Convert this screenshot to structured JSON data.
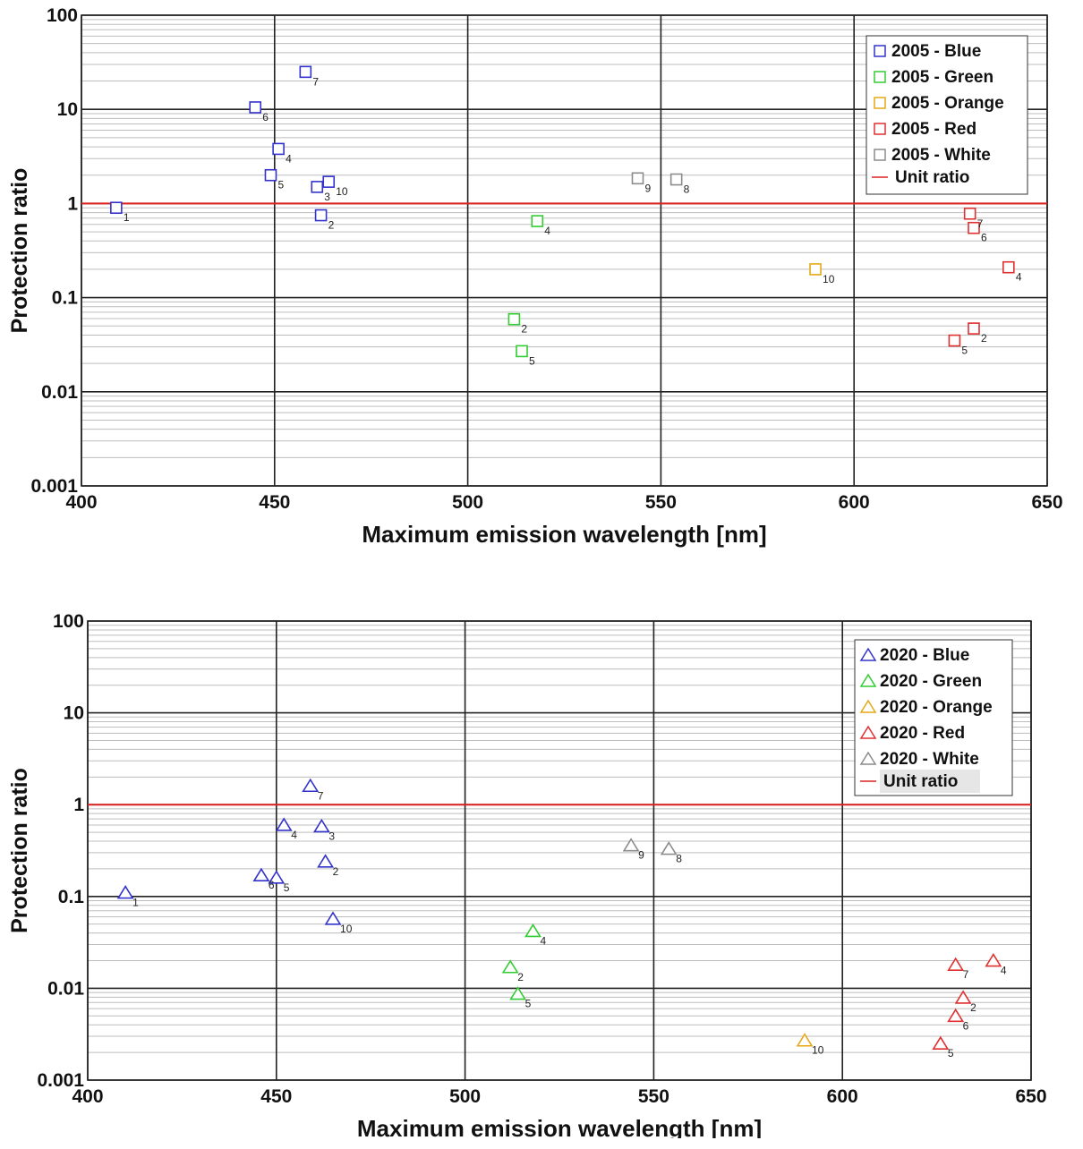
{
  "colors": {
    "Blue": "#3333cc",
    "Green": "#33cc33",
    "Orange": "#e6a817",
    "Red": "#e03030",
    "White": "#8c8c8c",
    "unit_line": "#dd2222",
    "major_grid": "#222222",
    "minor_grid": "#bdbdbd"
  },
  "chart_data": [
    {
      "type": "scatter",
      "marker": "square",
      "xlabel": "Maximum emission wavelength [nm]",
      "ylabel": "Protection ratio",
      "xlim": [
        400,
        650
      ],
      "ylim": [
        0.001,
        100
      ],
      "yscale": "log",
      "grid": true,
      "legend_position": "top-right",
      "x_ticks": [
        "400",
        "450",
        "500",
        "550",
        "600",
        "650"
      ],
      "y_ticks": [
        "0.001",
        "0.01",
        "0.1",
        "1",
        "10",
        "100"
      ],
      "unit_ratio": {
        "label": "Unit ratio",
        "y": 1
      },
      "series": [
        {
          "legend_year": "2005",
          "legend_name": "Blue",
          "color_key": "Blue",
          "points": [
            {
              "id": "1",
              "x": 409,
              "y": 0.9
            },
            {
              "id": "2",
              "x": 462,
              "y": 0.75
            },
            {
              "id": "3",
              "x": 461,
              "y": 1.5
            },
            {
              "id": "4",
              "x": 451,
              "y": 3.8
            },
            {
              "id": "5",
              "x": 449,
              "y": 2.0
            },
            {
              "id": "6",
              "x": 445,
              "y": 10.5
            },
            {
              "id": "7",
              "x": 458,
              "y": 25
            },
            {
              "id": "10",
              "x": 464,
              "y": 1.7
            }
          ]
        },
        {
          "legend_year": "2005",
          "legend_name": "Green",
          "color_key": "Green",
          "points": [
            {
              "id": "2",
              "x": 512,
              "y": 0.059
            },
            {
              "id": "4",
              "x": 518,
              "y": 0.65
            },
            {
              "id": "5",
              "x": 514,
              "y": 0.027
            }
          ]
        },
        {
          "legend_year": "2005",
          "legend_name": "Orange",
          "color_key": "Orange",
          "points": [
            {
              "id": "10",
              "x": 590,
              "y": 0.2
            }
          ]
        },
        {
          "legend_year": "2005",
          "legend_name": "Red",
          "color_key": "Red",
          "points": [
            {
              "id": "2",
              "x": 631,
              "y": 0.047
            },
            {
              "id": "4",
              "x": 640,
              "y": 0.21
            },
            {
              "id": "5",
              "x": 626,
              "y": 0.035
            },
            {
              "id": "6",
              "x": 631,
              "y": 0.55
            },
            {
              "id": "7",
              "x": 630,
              "y": 0.78
            }
          ]
        },
        {
          "legend_year": "2005",
          "legend_name": "White",
          "color_key": "White",
          "points": [
            {
              "id": "8",
              "x": 554,
              "y": 1.8
            },
            {
              "id": "9",
              "x": 544,
              "y": 1.85
            }
          ]
        }
      ]
    },
    {
      "type": "scatter",
      "marker": "triangle",
      "xlabel": "Maximum emission wavelength [nm]",
      "ylabel": "Protection ratio",
      "xlim": [
        400,
        650
      ],
      "ylim": [
        0.001,
        100
      ],
      "yscale": "log",
      "grid": true,
      "legend_position": "top-right",
      "x_ticks": [
        "400",
        "450",
        "500",
        "550",
        "600",
        "650"
      ],
      "y_ticks": [
        "0.001",
        "0.01",
        "0.1",
        "1",
        "10",
        "100"
      ],
      "unit_ratio": {
        "label": "Unit ratio",
        "y": 1
      },
      "series": [
        {
          "legend_year": "2020",
          "legend_name": "Blue",
          "color_key": "Blue",
          "points": [
            {
              "id": "1",
              "x": 410,
              "y": 0.11
            },
            {
              "id": "2",
              "x": 463,
              "y": 0.24
            },
            {
              "id": "3",
              "x": 462,
              "y": 0.58
            },
            {
              "id": "4",
              "x": 452,
              "y": 0.6
            },
            {
              "id": "5",
              "x": 450,
              "y": 0.16
            },
            {
              "id": "6",
              "x": 446,
              "y": 0.17
            },
            {
              "id": "7",
              "x": 459,
              "y": 1.6
            },
            {
              "id": "10",
              "x": 465,
              "y": 0.057
            }
          ]
        },
        {
          "legend_year": "2020",
          "legend_name": "Green",
          "color_key": "Green",
          "points": [
            {
              "id": "2",
              "x": 512,
              "y": 0.017
            },
            {
              "id": "4",
              "x": 518,
              "y": 0.042
            },
            {
              "id": "5",
              "x": 514,
              "y": 0.0087
            }
          ]
        },
        {
          "legend_year": "2020",
          "legend_name": "Orange",
          "color_key": "Orange",
          "points": [
            {
              "id": "10",
              "x": 590,
              "y": 0.0027
            }
          ]
        },
        {
          "legend_year": "2020",
          "legend_name": "Red",
          "color_key": "Red",
          "points": [
            {
              "id": "2",
              "x": 632,
              "y": 0.0079
            },
            {
              "id": "4",
              "x": 640,
              "y": 0.02
            },
            {
              "id": "5",
              "x": 626,
              "y": 0.0025
            },
            {
              "id": "6",
              "x": 630,
              "y": 0.005
            },
            {
              "id": "7",
              "x": 630,
              "y": 0.018
            }
          ]
        },
        {
          "legend_year": "2020",
          "legend_name": "White",
          "color_key": "White",
          "points": [
            {
              "id": "8",
              "x": 554,
              "y": 0.33
            },
            {
              "id": "9",
              "x": 544,
              "y": 0.36
            }
          ]
        }
      ]
    }
  ]
}
